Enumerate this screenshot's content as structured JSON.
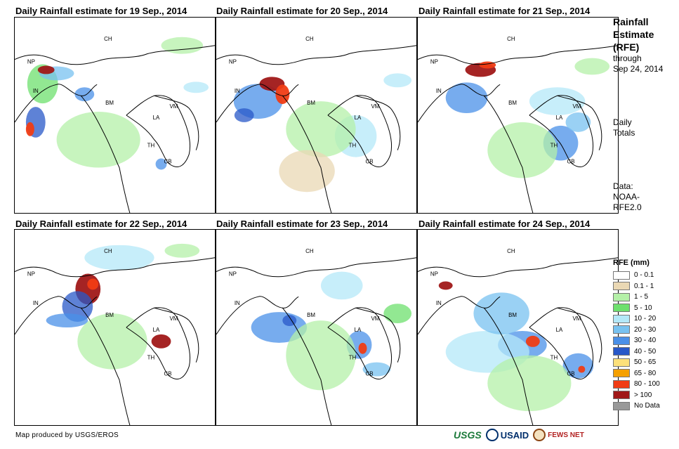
{
  "panels": [
    {
      "title": "Daily Rainfall estimate for 19 Sep., 2014"
    },
    {
      "title": "Daily Rainfall estimate for 20 Sep., 2014"
    },
    {
      "title": "Daily Rainfall estimate for 21 Sep., 2014"
    },
    {
      "title": "Daily Rainfall estimate for 22 Sep., 2014"
    },
    {
      "title": "Daily Rainfall estimate for 23 Sep., 2014"
    },
    {
      "title": "Daily Rainfall estimate for 24 Sep., 2014"
    }
  ],
  "country_labels": {
    "ch": "CH",
    "np": "NP",
    "in": "IN",
    "bm": "BM",
    "la": "LA",
    "vm": "VM",
    "th": "TH",
    "cb": "CB"
  },
  "side": {
    "title_1": "Rainfall",
    "title_2": "Estimate",
    "title_3": "(RFE)",
    "through": "through",
    "date": "Sep 24, 2014",
    "daily": "Daily",
    "totals": "Totals",
    "data_label": "Data:",
    "source_1": "NOAA-",
    "source_2": "RFE2.0"
  },
  "legend": {
    "title": "RFE (mm)",
    "items": [
      {
        "label": "0 - 0.1",
        "color": "#ffffff"
      },
      {
        "label": "0.1 - 1",
        "color": "#ead8b4"
      },
      {
        "label": "1 - 5",
        "color": "#b4f0a8"
      },
      {
        "label": "5 - 10",
        "color": "#6ee06e"
      },
      {
        "label": "10 - 20",
        "color": "#b4e8f8"
      },
      {
        "label": "20 - 30",
        "color": "#78c2f0"
      },
      {
        "label": "30 - 40",
        "color": "#4a90e8"
      },
      {
        "label": "40 - 50",
        "color": "#2858c8"
      },
      {
        "label": "50 - 65",
        "color": "#fce07a"
      },
      {
        "label": "65 - 80",
        "color": "#f5a000"
      },
      {
        "label": "80 - 100",
        "color": "#f03c14"
      },
      {
        "label": "> 100",
        "color": "#a01818"
      },
      {
        "label": "No Data",
        "color": "#999999"
      }
    ]
  },
  "footer": {
    "credit": "Map produced by USGS/EROS"
  },
  "logos": {
    "usgs": "USGS",
    "usaid": "USAID",
    "fews": "FEWS NET"
  }
}
